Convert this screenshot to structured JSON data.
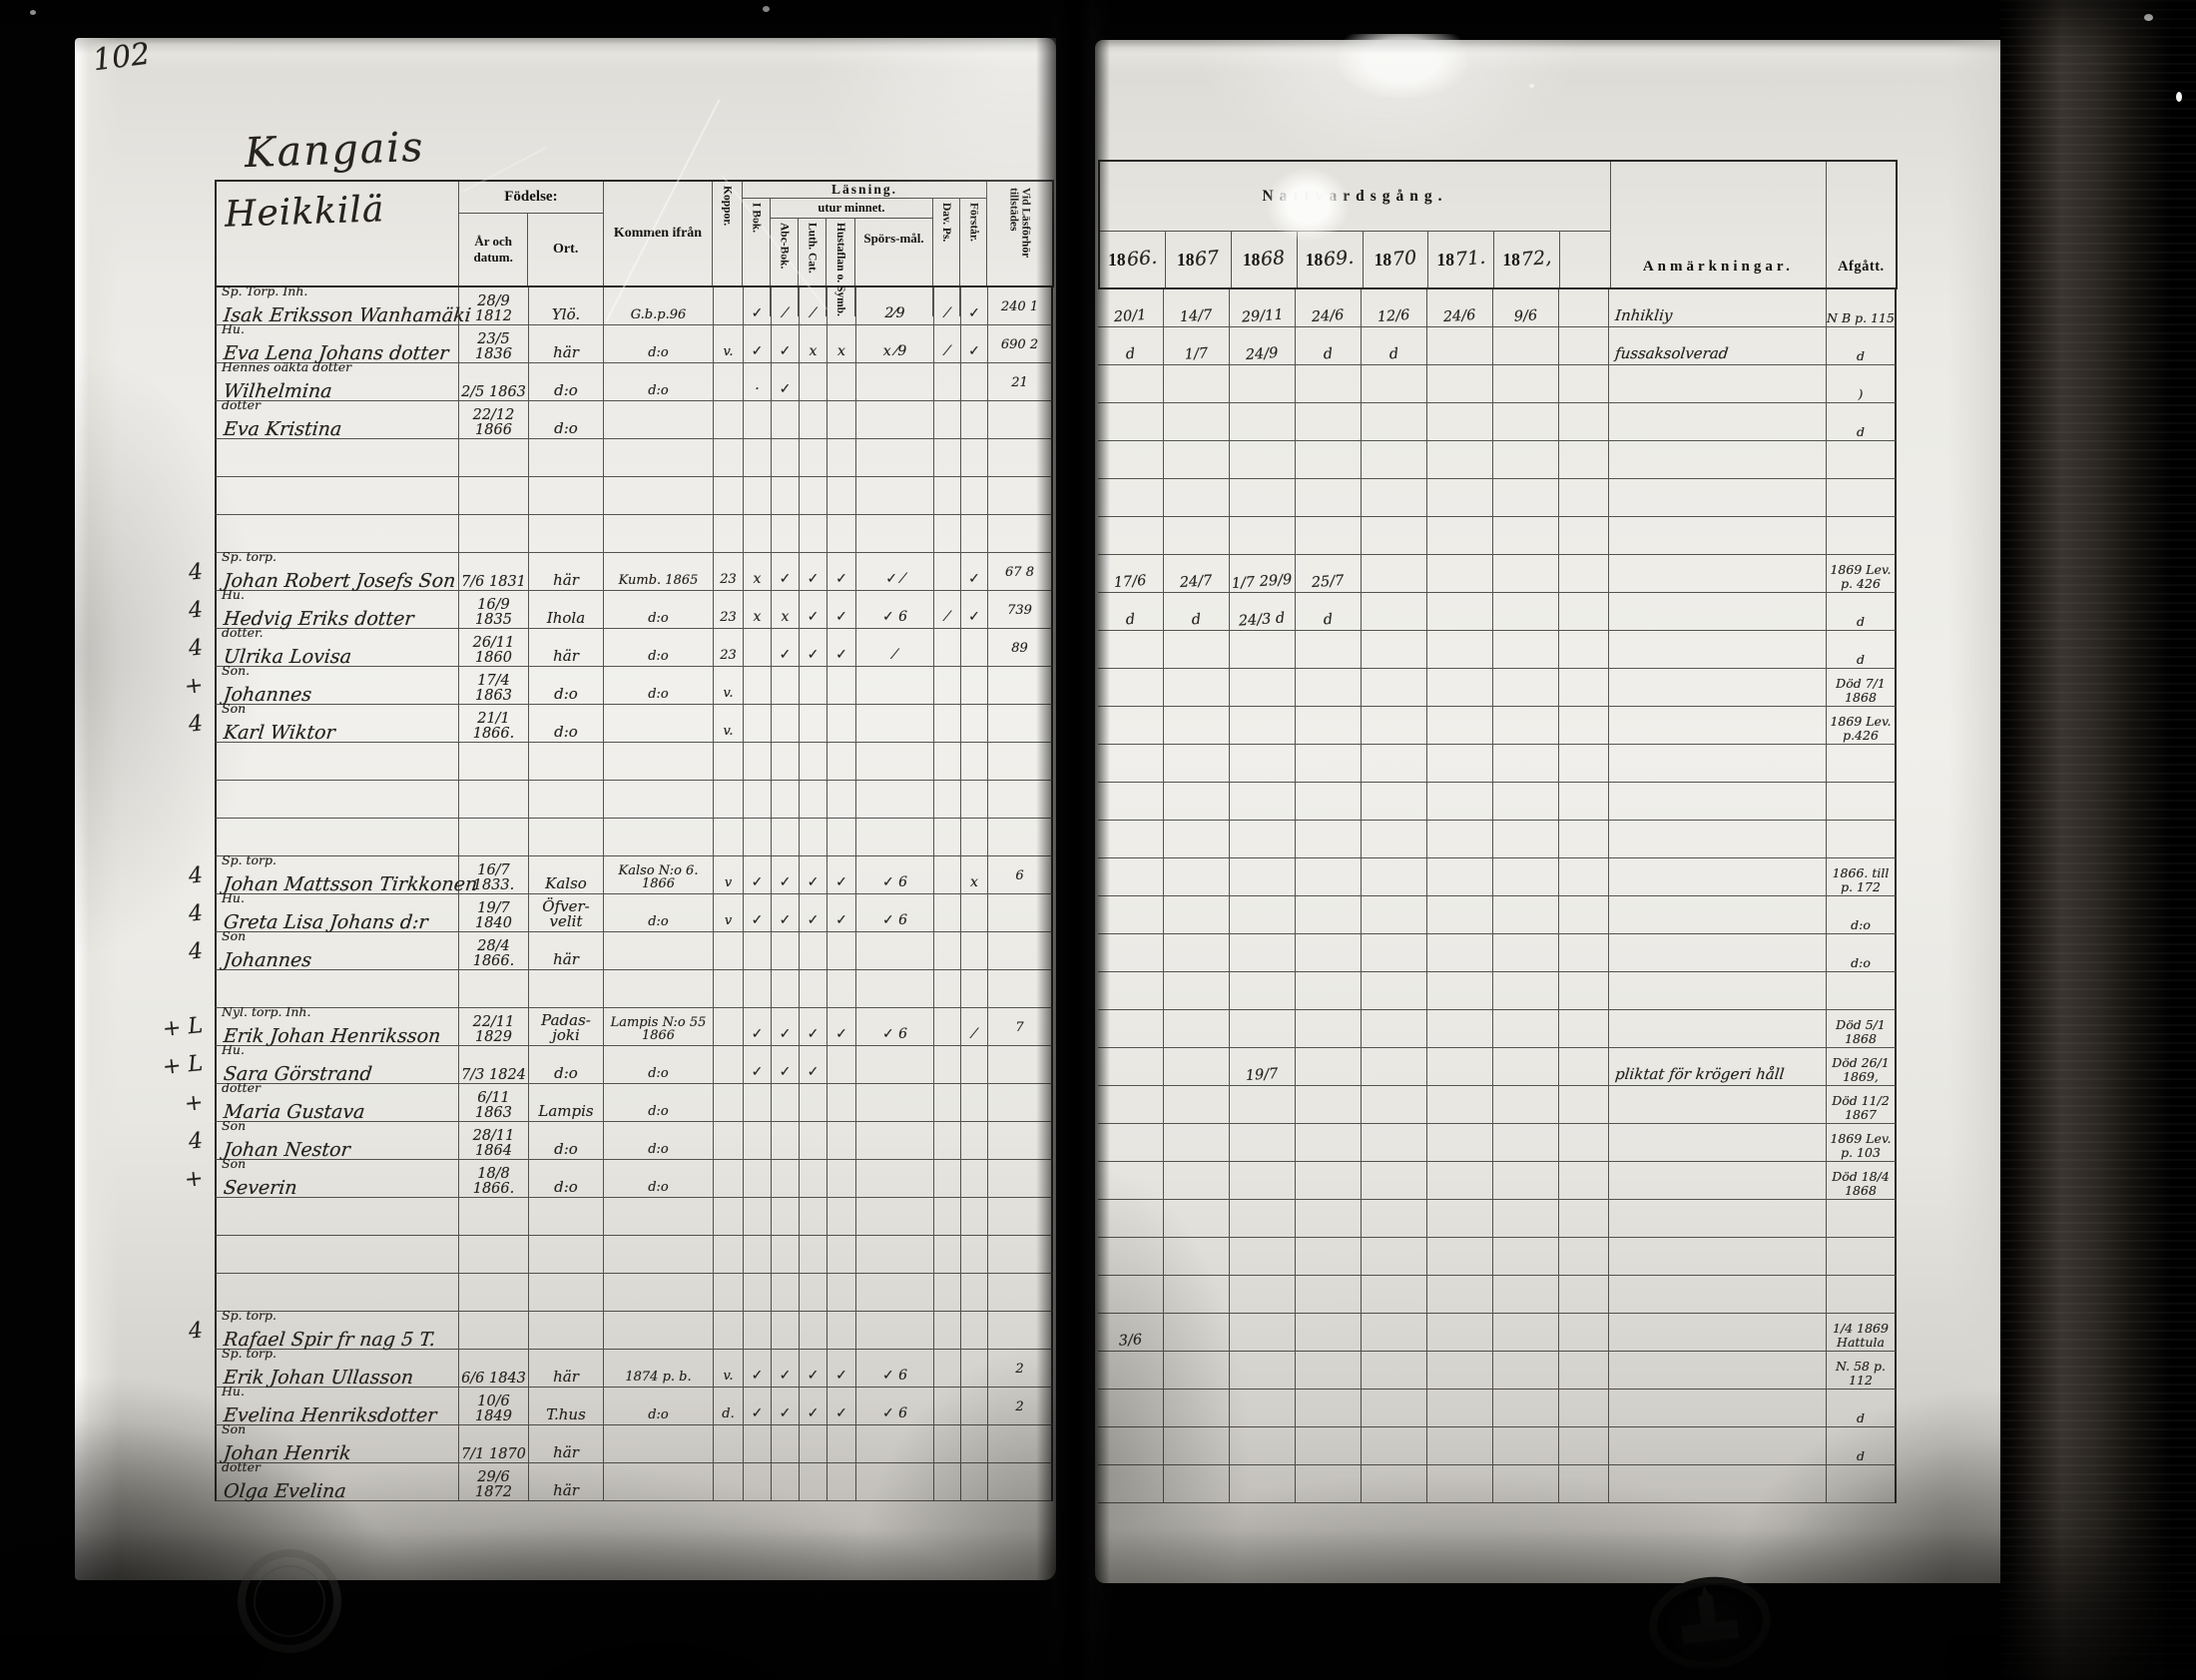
{
  "photo": {
    "page_number": "102"
  },
  "palette": {
    "photo_background": "#000000",
    "paper": "#f0efeb",
    "ink": "#26231f"
  },
  "left_page": {
    "village": "Kangais",
    "farm": "Heikkilä",
    "header": {
      "fodelse": "Födelse:",
      "ar_och_datum": "År och datum.",
      "ort": "Ort.",
      "kommen_ifran": "Kommen ifrån",
      "koppor": "Koppor.",
      "lasning": "Läsning.",
      "utur_minnet": "utur minnet.",
      "i_bok": "I Bok.",
      "abc_bok": "Abc-Bok.",
      "luth_cat": "Luth. Cat.",
      "hustaflan": "Hustaflan o. Symb.",
      "sporsmal": "Spörs-mål.",
      "dav_ps": "Dav. Ps.",
      "forstar": "Förstår.",
      "vid_lasforhor": "Vid Läsförhör tillstädes"
    }
  },
  "right_page": {
    "header": {
      "nattvardsgang": "Nattvardsgång.",
      "years": [
        {
          "printed": "18",
          "written": "66."
        },
        {
          "printed": "18",
          "written": "67"
        },
        {
          "printed": "18",
          "written": "68"
        },
        {
          "printed": "18",
          "written": "69."
        },
        {
          "printed": "18",
          "written": "70"
        },
        {
          "printed": "18",
          "written": "71."
        },
        {
          "printed": "18",
          "written": "72,"
        }
      ],
      "anmarkningar": "Anmärkningar.",
      "afgatt": "Afgått."
    }
  },
  "rows": [
    {
      "cap": "Sp. Torp. Inh.",
      "name": "Isak Eriksson Wanhamäki",
      "date": "28/9 1812",
      "ort": "Ylö.",
      "kommen": "G.b.p.96",
      "r1": "✓",
      "r2": "⁄",
      "r3": "⁄",
      "sp": "2⁄9",
      "dav": "⁄",
      "fo": "✓",
      "vid": "240 1",
      "natt": [
        "20/1",
        "14/7",
        "29/11",
        "24/6",
        "12/6",
        "24/6",
        "9/6"
      ],
      "anm": "Inhikliy",
      "afg": "N B p. 115"
    },
    {
      "cap": "Hu.",
      "name": "Eva Lena Johans dotter",
      "date": "23/5 1836",
      "ort": "här",
      "kommen": "d:o",
      "kop": "v.",
      "r1": "✓",
      "r2": "✓",
      "r3": "x",
      "r4": "x",
      "sp": "x ⁄9",
      "dav": "⁄",
      "fo": "✓",
      "vid": "690 2",
      "natt": [
        "d",
        "1/7",
        "24/9",
        "d",
        "d",
        "",
        ""
      ],
      "anm": "fussaksolverad",
      "afg": "d"
    },
    {
      "cap": "Hennes oäkta dotter",
      "name": "Wilhelmina",
      "date": "2/5 1863",
      "ort": "d:o",
      "kommen": "d:o",
      "r1": "·",
      "r2": "✓",
      "vid": "21",
      "afg": ")"
    },
    {
      "cap": "dotter",
      "name": "Eva Kristina",
      "date": "22/12 1866",
      "ort": "d:o",
      "afg": "d"
    },
    {},
    {},
    {},
    {
      "m": "4",
      "cap": "Sp. torp.",
      "name": "Johan Robert Josefs Son",
      "date": "7/6 1831",
      "ort": "här",
      "kommen": "Kumb. 1865",
      "kop": "23",
      "r1": "x",
      "r2": "✓",
      "r3": "✓",
      "r4": "✓",
      "sp": "✓ ⁄",
      "fo": "✓",
      "vid": "67 8",
      "natt": [
        "17/6",
        "24/7",
        "1/7 29/9",
        "25/7",
        "",
        "",
        ""
      ],
      "afg": "1869 Lev. p. 426"
    },
    {
      "m": "4",
      "cap": "Hu.",
      "name": "Hedvig Eriks dotter",
      "date": "16/9 1835",
      "ort": "Ihola",
      "kommen": "d:o",
      "kop": "23",
      "r1": "x",
      "r2": "x",
      "r3": "✓",
      "r4": "✓",
      "sp": "✓ 6",
      "dav": "⁄",
      "fo": "✓",
      "vid": "739",
      "natt": [
        "d",
        "d",
        "24/3 d",
        "d",
        "",
        "",
        ""
      ],
      "afg": "d"
    },
    {
      "m": "4",
      "cap": "dotter.",
      "name": "Ulrika Lovisa",
      "date": "26/11 1860",
      "ort": "här",
      "kommen": "d:o",
      "kop": "23",
      "r2": "✓",
      "r3": "✓",
      "r4": "✓",
      "sp": "⁄",
      "vid": "89",
      "afg": "d"
    },
    {
      "m": "+",
      "cap": "Son.",
      "name": "Johannes",
      "date": "17/4 1863",
      "ort": "d:o",
      "kommen": "d:o",
      "kop": "v.",
      "afg": "Död 7/1 1868"
    },
    {
      "m": "4",
      "cap": "Son",
      "name": "Karl Wiktor",
      "date": "21/1 1866.",
      "ort": "d:o",
      "kop": "v.",
      "afg": "1869 Lev. p.426"
    },
    {},
    {},
    {},
    {
      "m": "4",
      "cap": "Sp. torp.",
      "name": "Johan Mattsson Tirkkonen",
      "date": "16/7 1833.",
      "ort": "Kalso",
      "kommen": "Kalso N:o 6. 1866",
      "kop": "v",
      "r1": "✓",
      "r2": "✓",
      "r3": "✓",
      "r4": "✓",
      "sp": "✓ 6",
      "fo": "x",
      "vid": "6",
      "afg": "1866. till p. 172"
    },
    {
      "m": "4",
      "cap": "Hu.",
      "name": "Greta Lisa Johans d:r",
      "date": "19/7 1840",
      "ort": "Öfver- velit",
      "kommen": "d:o",
      "kop": "v",
      "r1": "✓",
      "r2": "✓",
      "r3": "✓",
      "r4": "✓",
      "sp": "✓ 6",
      "afg": "d:o"
    },
    {
      "m": "4",
      "cap": "Son",
      "name": "Johannes",
      "date": "28/4 1866.",
      "ort": "här",
      "afg": "d:o"
    },
    {},
    {
      "m": "+ L",
      "cap": "Nyl. torp. Inh.",
      "name": "Erik Johan Henriksson",
      "date": "22/11 1829",
      "ort": "Padas- joki",
      "kommen": "Lampis N:o 55 1866",
      "r1": "✓",
      "r2": "✓",
      "r3": "✓",
      "r4": "✓",
      "sp": "✓ 6",
      "fo": "⁄",
      "vid": "7",
      "afg": "Död 5/1 1868"
    },
    {
      "m": "+ L",
      "cap": "Hu.",
      "name": "Sara Görstrand",
      "date": "7/3 1824",
      "ort": "d:o",
      "kommen": "d:o",
      "r1": "✓",
      "r2": "✓",
      "r3": "✓",
      "natt": [
        "",
        "",
        "19/7",
        "",
        "",
        "",
        ""
      ],
      "anm": "pliktat för krögeri håll",
      "afg": "Död 26/1 1869,"
    },
    {
      "m": "+",
      "cap": "dotter",
      "name": "Maria Gustava",
      "date": "6/11 1863",
      "ort": "Lampis",
      "kommen": "d:o",
      "afg": "Död 11/2 1867"
    },
    {
      "m": "4",
      "cap": "Son",
      "name": "Johan Nestor",
      "date": "28/11 1864",
      "ort": "d:o",
      "kommen": "d:o",
      "afg": "1869 Lev. p. 103"
    },
    {
      "m": "+",
      "cap": "Son",
      "name": "Severin",
      "date": "18/8 1866.",
      "ort": "d:o",
      "kommen": "d:o",
      "afg": "Död 18/4 1868"
    },
    {},
    {},
    {},
    {
      "m": "4",
      "cap": "Sp. torp.",
      "name": "Rafael Spir fr nag 5 T.",
      "natt": [
        "3/6",
        "",
        "",
        "",
        "",
        "",
        ""
      ],
      "afg": "1/4 1869 Hattula"
    },
    {
      "cap": "Sp. torp.",
      "name": "Erik Johan Ullasson",
      "date": "6/6 1843",
      "ort": "här",
      "kommen": "1874 p. b.",
      "kop": "v.",
      "r1": "✓",
      "r2": "✓",
      "r3": "✓",
      "r4": "✓",
      "sp": "✓ 6",
      "vid": "2",
      "afg": "N. 58 p. 112"
    },
    {
      "cap": "Hu.",
      "name": "Evelina Henriksdotter",
      "date": "10/6 1849",
      "ort": "T.hus",
      "kommen": "d:o",
      "kop": "d.",
      "r1": "✓",
      "r2": "✓",
      "r3": "✓",
      "r4": "✓",
      "sp": "✓ 6",
      "vid": "2",
      "afg": "d"
    },
    {
      "cap": "Son",
      "name": "Johan Henrik",
      "date": "7/1 1870",
      "ort": "här",
      "afg": "d"
    },
    {
      "cap": "dotter",
      "name": "Olga Evelina",
      "date": "29/6 1872",
      "ort": "här"
    }
  ]
}
